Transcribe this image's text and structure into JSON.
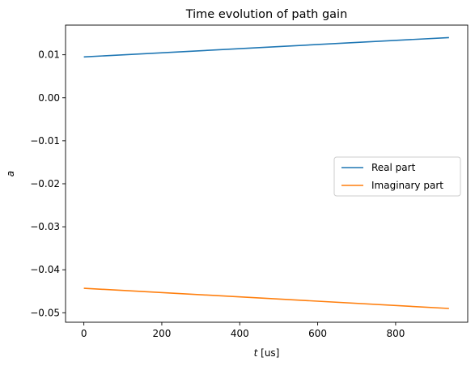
{
  "chart_data": {
    "type": "line",
    "title": "Time evolution of path gain",
    "xlabel_var": "t",
    "xlabel_unit": " [us]",
    "ylabel": "a",
    "xlim": [
      -47,
      985
    ],
    "ylim": [
      -0.0522,
      0.0169
    ],
    "x_ticks": [
      0,
      200,
      400,
      600,
      800
    ],
    "x_tick_labels": [
      "0",
      "200",
      "400",
      "600",
      "800"
    ],
    "y_ticks": [
      0.01,
      0.0,
      -0.01,
      -0.02,
      -0.03,
      -0.04,
      -0.05
    ],
    "y_tick_labels": [
      "0.01",
      "0.00",
      "−0.01",
      "−0.02",
      "−0.03",
      "−0.04",
      "−0.05"
    ],
    "legend_position": "center-right",
    "grid": false,
    "series": [
      {
        "name": "Real part",
        "color": "#1f77b4",
        "x": [
          0,
          937
        ],
        "y": [
          0.0095,
          0.014
        ]
      },
      {
        "name": "Imaginary part",
        "color": "#ff7f0e",
        "x": [
          0,
          937
        ],
        "y": [
          -0.0443,
          -0.049
        ]
      }
    ]
  }
}
